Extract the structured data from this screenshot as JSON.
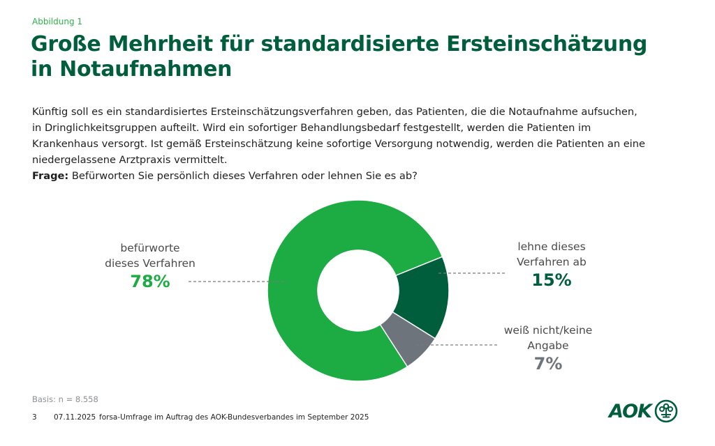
{
  "header": {
    "figure_label": "Abbildung 1",
    "title_line1": "Große Mehrheit für standardisierte Ersteinschätzung",
    "title_line2": "in Notaufnahmen"
  },
  "intro": {
    "text": "Künftig soll es ein standardisiertes Ersteinschätzungsverfahren geben, das Patienten, die die Notaufnahme aufsuchen, in Dringlichkeitsgruppen aufteilt. Wird ein sofortiger Behandlungsbedarf festgestellt, werden die Patienten im Krankenhaus versorgt. Ist gemäß Ersteinschätzung keine sofortige Versorgung notwendig, werden die Patienten an eine niedergelassene Arztpraxis vermittelt.",
    "question_label": "Frage:",
    "question": "Befürworten Sie persönlich dieses Verfahren oder lehnen Sie es ab?"
  },
  "chart_data": {
    "type": "pie",
    "variant": "donut",
    "title": "",
    "start_angle_deg": 68,
    "direction": "clockwise",
    "slices": [
      {
        "label_line1": "lehne dieses",
        "label_line2": "Verfahren ab",
        "value": 15,
        "display": "15%",
        "color": "#005e3c",
        "label_color": "#005e3c",
        "label_side": "right"
      },
      {
        "label_line1": "weiß nicht/keine",
        "label_line2": "Angabe",
        "value": 7,
        "display": "7%",
        "color": "#6d747b",
        "label_color": "#6d747b",
        "label_side": "right"
      },
      {
        "label_line1": "befürworte",
        "label_line2": "dieses Verfahren",
        "value": 78,
        "display": "78%",
        "color": "#1dab43",
        "label_color": "#1dab43",
        "label_side": "left"
      }
    ],
    "unit": "%"
  },
  "footer": {
    "basis": "Basis: n = 8.558",
    "page_number": "3",
    "date": "07.11.2025",
    "source": "forsa-Umfrage im Auftrag des AOK-Bundesverbandes im September 2025",
    "logo_text": "AOK"
  }
}
